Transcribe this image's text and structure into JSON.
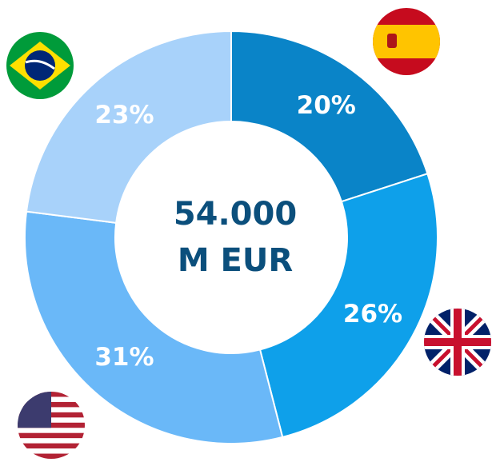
{
  "chart_data": {
    "type": "pie",
    "donut": true,
    "values": [
      20,
      26,
      31,
      23
    ],
    "value_labels": [
      "20%",
      "26%",
      "31%",
      "23%"
    ],
    "colors": [
      "#0a84c8",
      "#0ea0ea",
      "#6ab8f8",
      "#a8d2fa"
    ],
    "annotations": [
      "54.000",
      "M EUR"
    ]
  }
}
